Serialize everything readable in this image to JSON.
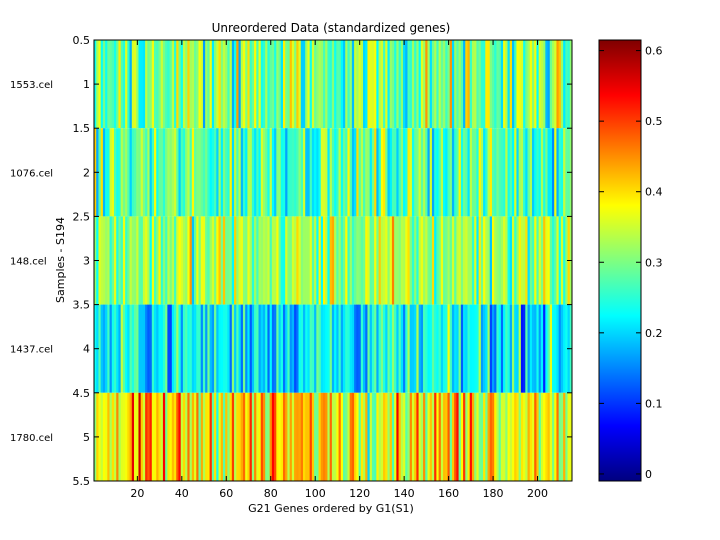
{
  "chart_data": {
    "type": "heatmap",
    "title": "Unreordered Data (standardized genes)",
    "xlabel": "G21 Genes ordered by G1(S1)",
    "ylabel": "Samples - S194",
    "n_genes": 215,
    "n_samples": 5,
    "xlim": [
      0.5,
      215.5
    ],
    "ylim": [
      0.5,
      5.5
    ],
    "x_ticks": [
      20,
      40,
      60,
      80,
      100,
      120,
      140,
      160,
      180,
      200
    ],
    "y_ticks": [
      0.5,
      1,
      1.5,
      2,
      2.5,
      3,
      3.5,
      4,
      4.5,
      5,
      5.5
    ],
    "y_tick_labels": [
      "0.5",
      "1",
      "1.5",
      "2",
      "2.5",
      "3",
      "3.5",
      "4",
      "4.5",
      "5",
      "5.5"
    ],
    "row_labels": [
      "1553.cel",
      "1076.cel",
      "148.cel",
      "1437.cel",
      "1780.cel"
    ],
    "colorbar": {
      "colormap": "jet",
      "clim": [
        -0.01,
        0.615
      ],
      "ticks": [
        0,
        0.1,
        0.2,
        0.3,
        0.4,
        0.5,
        0.6
      ],
      "tick_labels": [
        "0",
        "0.1",
        "0.2",
        "0.3",
        "0.4",
        "0.5",
        "0.6"
      ]
    },
    "row_profiles": [
      {
        "sample": "1553.cel",
        "mean": 0.3,
        "spread": 0.11
      },
      {
        "sample": "1076.cel",
        "mean": 0.28,
        "spread": 0.09
      },
      {
        "sample": "148.cel",
        "mean": 0.32,
        "spread": 0.09
      },
      {
        "sample": "1437.cel",
        "mean": 0.22,
        "spread": 0.09
      },
      {
        "sample": "1780.cel",
        "mean": 0.4,
        "spread": 0.11
      }
    ]
  }
}
